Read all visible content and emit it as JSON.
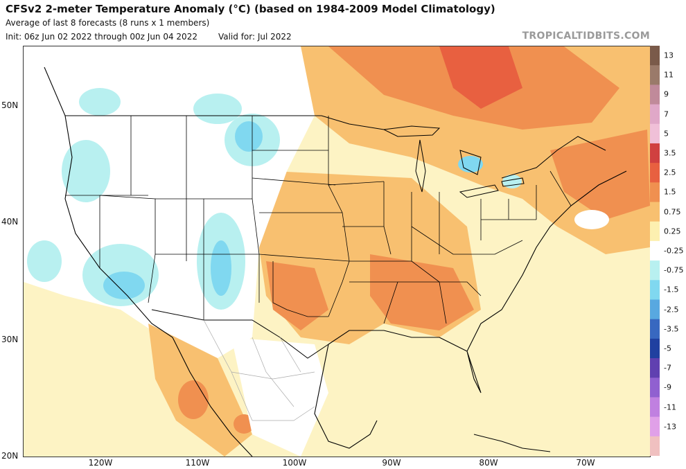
{
  "header": {
    "title": "CFSv2 2-meter Temperature Anomaly (°C) (based on 1984-2009 Model Climatology)",
    "subtitle": "Average of last 8 forecasts (8 runs x 1 members)",
    "init": "Init: 06z Jun 02 2022 through 00z Jun 04 2022",
    "valid": "Valid for: Jul 2022",
    "brand": "TROPICALTIDBITS.COM"
  },
  "axes": {
    "lat_labels": [
      "50N",
      "40N",
      "30N",
      "20N"
    ],
    "lon_labels": [
      "120W",
      "110W",
      "100W",
      "90W",
      "80W",
      "70W"
    ]
  },
  "colorbar": {
    "labels": [
      "13",
      "11",
      "9",
      "7",
      "5",
      "3.5",
      "2.5",
      "1.5",
      "0.75",
      "0.25",
      "-0.25",
      "-0.75",
      "-1.5",
      "-2.5",
      "-3.5",
      "-5",
      "-7",
      "-9",
      "-11",
      "-13"
    ],
    "colors": [
      "#7a5a4a",
      "#9a7a6a",
      "#c08a9a",
      "#e0a8c8",
      "#f0c0d8",
      "#d04040",
      "#e86040",
      "#f09050",
      "#f8c070",
      "#fdf0b0",
      "#ffffff",
      "#b8f0f0",
      "#80d8f0",
      "#58a8e0",
      "#3868c0",
      "#2040a0",
      "#6040b0",
      "#9060d0",
      "#c080e0",
      "#e0a0e8",
      "#f0c0c0"
    ]
  }
}
